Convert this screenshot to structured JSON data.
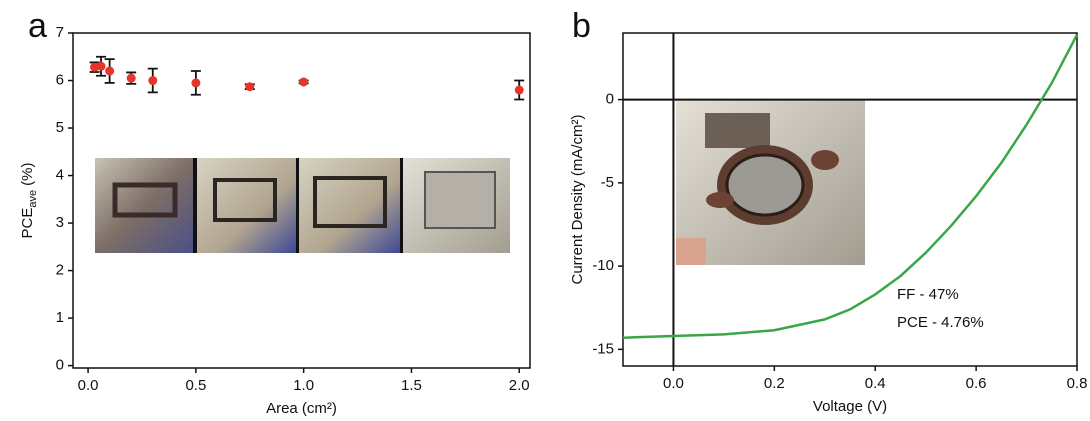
{
  "chart_data": [
    {
      "type": "scatter",
      "panel_label": "a",
      "xlabel": "Area (cm²)",
      "ylabel": {
        "text": "PCE",
        "sub": "ave",
        "unit": "(%)"
      },
      "x": [
        0.03,
        0.06,
        0.1,
        0.2,
        0.3,
        0.5,
        0.75,
        1.0,
        2.0
      ],
      "values": [
        6.28,
        6.3,
        6.2,
        6.05,
        6.0,
        5.95,
        5.87,
        5.97,
        5.8
      ],
      "errors": [
        0.1,
        0.2,
        0.25,
        0.12,
        0.25,
        0.25,
        0.05,
        0.03,
        0.2
      ],
      "color": "#e8352b",
      "errorbar_color": "#111111",
      "xlim": [
        -0.07,
        2.05
      ],
      "ylim": [
        -0.05,
        7
      ],
      "xticks": [
        {
          "value": 0,
          "label": "0.0"
        },
        0.5,
        {
          "value": 1,
          "label": "1.0"
        },
        1.5,
        {
          "value": 2,
          "label": "2.0"
        }
      ],
      "yticks": [
        0,
        1,
        2,
        3,
        4,
        5,
        6,
        7
      ]
    },
    {
      "type": "line",
      "panel_label": "b",
      "xlabel": "Voltage (V)",
      "ylabel": "Current Density (mA/cm²)",
      "x": [
        -0.1,
        0.0,
        0.1,
        0.2,
        0.3,
        0.35,
        0.4,
        0.45,
        0.5,
        0.55,
        0.6,
        0.65,
        0.7,
        0.75,
        0.8
      ],
      "values": [
        -14.3,
        -14.2,
        -14.1,
        -13.85,
        -13.2,
        -12.6,
        -11.7,
        -10.6,
        -9.2,
        -7.6,
        -5.8,
        -3.8,
        -1.5,
        1.0,
        3.9
      ],
      "color": "#3aa646",
      "zero_lines": true,
      "xlim": [
        -0.1,
        0.8
      ],
      "ylim": [
        -16,
        4
      ],
      "xticks": [
        {
          "value": 0,
          "label": "0.0"
        },
        0.2,
        0.4,
        0.6,
        0.8
      ],
      "yticks": [
        -15,
        -10,
        -5,
        0
      ],
      "annotations": [
        "FF - 47%",
        "PCE - 4.76%"
      ]
    }
  ]
}
